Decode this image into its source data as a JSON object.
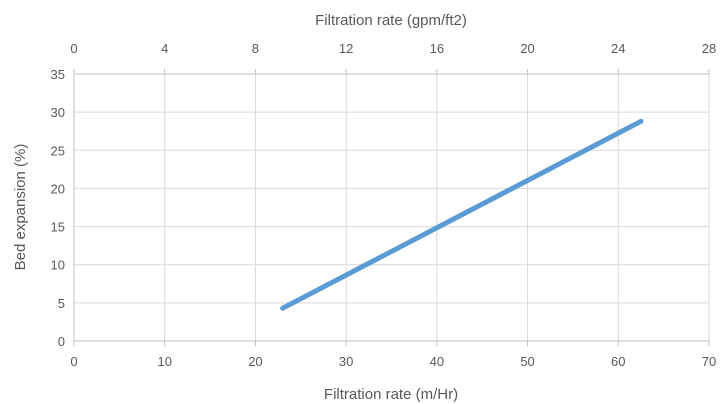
{
  "chart_data": {
    "type": "line",
    "title": "",
    "xlabel": "Filtration rate (m/Hr)",
    "x2label": "Filtration rate (gpm/ft2)",
    "ylabel": "Bed expansion (%)",
    "xlim": [
      0,
      70
    ],
    "x2lim": [
      0,
      28
    ],
    "ylim": [
      0,
      35
    ],
    "xticks": [
      0,
      10,
      20,
      30,
      40,
      50,
      60,
      70
    ],
    "x2ticks": [
      0,
      4,
      8,
      12,
      16,
      20,
      24,
      28
    ],
    "yticks": [
      0,
      5,
      10,
      15,
      20,
      25,
      30,
      35
    ],
    "grid": true,
    "legend": "none",
    "series": [
      {
        "color": "#5B9BD5",
        "x": [
          23,
          62.5
        ],
        "y": [
          4.3,
          28.8
        ]
      }
    ]
  }
}
